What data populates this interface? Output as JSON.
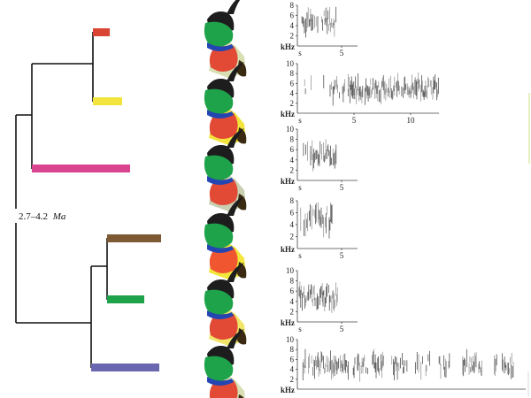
{
  "node_label": {
    "age": "2.7–4.2",
    "unit": "Ma"
  },
  "tips": [
    {
      "color": "#d94434"
    },
    {
      "color": "#f2e43c"
    },
    {
      "color": "#d9468f"
    },
    {
      "color": "#7d5a33"
    },
    {
      "color": "#1ea34a"
    },
    {
      "color": "#6b66b0"
    }
  ],
  "birds": [
    {
      "throat_color": "#e24a35",
      "cheek_color": "#1ea34a",
      "face_band_color": "#2446b2",
      "back_color": "#d7dfb3"
    },
    {
      "throat_color": "#e24a35",
      "cheek_color": "#1ea34a",
      "face_band_color": "#2446b2",
      "back_color": "#f2e43c"
    },
    {
      "throat_color": "#e24a35",
      "cheek_color": "#1ea34a",
      "face_band_color": "#2446b2",
      "back_color": "#c9cfb1"
    },
    {
      "throat_color": "#f0562f",
      "cheek_color": "#1ea34a",
      "face_band_color": "#2446b2",
      "back_color": "#f3e63d"
    },
    {
      "throat_color": "#e24a35",
      "cheek_color": "#1ea34a",
      "face_band_color": "#2446b2",
      "back_color": "#f1e66a"
    },
    {
      "throat_color": "#e24a35",
      "cheek_color": "#1ea34a",
      "face_band_color": "#2446b2",
      "back_color": "#d7dfb3"
    }
  ],
  "spectrograms": [
    {
      "y_unit": "kHz",
      "x_unit": "s",
      "y_ticks": [
        2,
        4,
        6,
        8
      ],
      "x_ticks": [
        5
      ]
    },
    {
      "y_unit": "kHz",
      "x_unit": "s",
      "y_ticks": [
        2,
        4,
        6,
        8,
        10
      ],
      "x_ticks": [
        5,
        10
      ]
    },
    {
      "y_unit": "kHz",
      "x_unit": "s",
      "y_ticks": [
        2,
        4,
        6,
        8,
        10
      ],
      "x_ticks": [
        5
      ]
    },
    {
      "y_unit": "kHz",
      "x_unit": "s",
      "y_ticks": [
        2,
        4,
        6,
        8
      ],
      "x_ticks": [
        5
      ]
    },
    {
      "y_unit": "kHz",
      "x_unit": "s",
      "y_ticks": [
        2,
        4,
        6,
        8,
        10
      ],
      "x_ticks": [
        5
      ]
    },
    {
      "y_unit": "kHz",
      "x_unit": "",
      "y_ticks": [
        2,
        4,
        6,
        8,
        10
      ],
      "x_ticks": []
    }
  ]
}
